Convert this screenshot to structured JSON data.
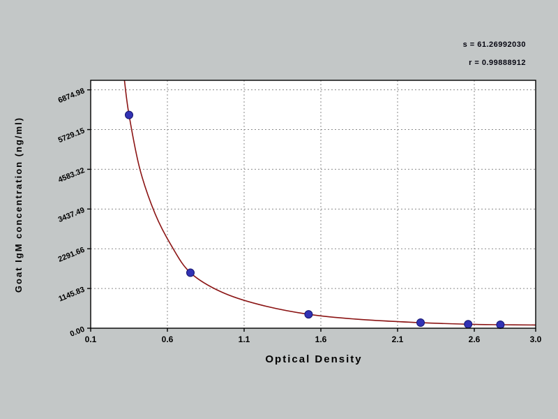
{
  "annotations": {
    "s_line": "s = 61.26992030",
    "r_line": "r = 0.99888912"
  },
  "chart_data": {
    "type": "scatter",
    "title": "",
    "xlabel": "Optical Density",
    "ylabel": "Goat IgM concentration (ng/ml)",
    "xlim": [
      0.1,
      3.0
    ],
    "ylim": [
      0,
      7150
    ],
    "grid": true,
    "legend": "none",
    "x_ticks": [
      0.1,
      0.6,
      1.1,
      1.6,
      2.1,
      2.6,
      3.0
    ],
    "x_tick_labels": [
      "0.1",
      "0.6",
      "1.1",
      "1.6",
      "2.1",
      "2.6",
      "3.0"
    ],
    "y_ticks": [
      0,
      1145.83,
      2291.66,
      3437.49,
      4583.32,
      5729.15,
      6874.98
    ],
    "y_tick_labels": [
      "0.00",
      "1145.83",
      "2291.66",
      "3437.49",
      "4583.32",
      "5729.15",
      "6874.98"
    ],
    "points": [
      [
        0.35,
        6150
      ],
      [
        0.75,
        1600
      ],
      [
        1.52,
        400
      ],
      [
        2.25,
        160
      ],
      [
        2.56,
        115
      ],
      [
        2.77,
        100
      ]
    ],
    "curve": [
      [
        0.32,
        7150
      ],
      [
        0.35,
        6150
      ],
      [
        0.42,
        4600
      ],
      [
        0.52,
        3300
      ],
      [
        0.63,
        2350
      ],
      [
        0.75,
        1600
      ],
      [
        0.95,
        1050
      ],
      [
        1.2,
        680
      ],
      [
        1.52,
        400
      ],
      [
        1.85,
        255
      ],
      [
        2.25,
        160
      ],
      [
        2.56,
        115
      ],
      [
        2.77,
        100
      ],
      [
        3.0,
        92
      ]
    ],
    "colors": {
      "curve": "#8b1414",
      "point_fill": "#3232b4",
      "point_stroke": "#16166e",
      "grid": "#8a8a8a",
      "plot_bg": "#ffffff",
      "page_bg": "#c3c7c7",
      "text": "#000000"
    }
  }
}
